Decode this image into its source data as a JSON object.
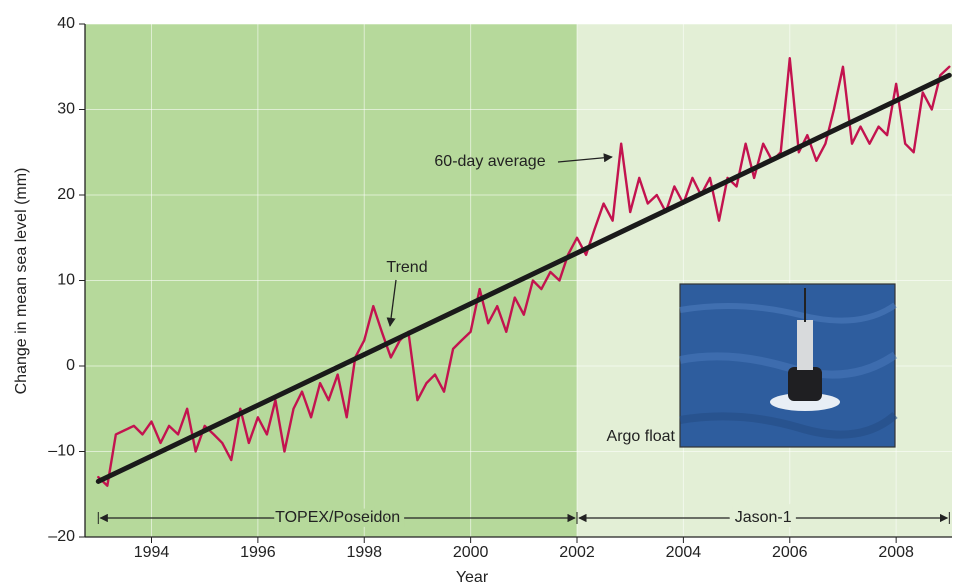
{
  "chart_data": {
    "type": "line",
    "x_label": "Year",
    "y_label": "Change in mean sea level (mm)",
    "xlim": [
      1992.75,
      2009.05
    ],
    "ylim": [
      -20,
      40
    ],
    "xticks": [
      1994,
      1996,
      1998,
      2000,
      2002,
      2004,
      2006,
      2008
    ],
    "yticks": [
      {
        "value": -20,
        "label": "–20"
      },
      {
        "value": -10,
        "label": "–10"
      },
      0,
      10,
      20,
      30,
      40
    ],
    "grid": true,
    "regions": [
      {
        "label": "TOPEX/Poseidon",
        "from": 1993,
        "to": 2002,
        "color": "#b6d99b"
      },
      {
        "label": "Jason-1",
        "from": 2002,
        "to": 2009,
        "color": "#e3efd6"
      }
    ],
    "series": [
      {
        "name": "60-day average",
        "color": "#c3134f",
        "x": [
          1993.0,
          1993.17,
          1993.33,
          1993.5,
          1993.67,
          1993.83,
          1994.0,
          1994.17,
          1994.33,
          1994.5,
          1994.67,
          1994.83,
          1995.0,
          1995.17,
          1995.33,
          1995.5,
          1995.67,
          1995.83,
          1996.0,
          1996.17,
          1996.33,
          1996.5,
          1996.67,
          1996.83,
          1997.0,
          1997.17,
          1997.33,
          1997.5,
          1997.67,
          1997.83,
          1998.0,
          1998.17,
          1998.33,
          1998.5,
          1998.67,
          1998.83,
          1999.0,
          1999.17,
          1999.33,
          1999.5,
          1999.67,
          1999.83,
          2000.0,
          2000.17,
          2000.33,
          2000.5,
          2000.67,
          2000.83,
          2001.0,
          2001.17,
          2001.33,
          2001.5,
          2001.67,
          2001.83,
          2002.0,
          2002.17,
          2002.33,
          2002.5,
          2002.67,
          2002.83,
          2003.0,
          2003.17,
          2003.33,
          2003.5,
          2003.67,
          2003.83,
          2004.0,
          2004.17,
          2004.33,
          2004.5,
          2004.67,
          2004.83,
          2005.0,
          2005.17,
          2005.33,
          2005.5,
          2005.67,
          2005.83,
          2006.0,
          2006.17,
          2006.33,
          2006.5,
          2006.67,
          2006.83,
          2007.0,
          2007.17,
          2007.33,
          2007.5,
          2007.67,
          2007.83,
          2008.0,
          2008.17,
          2008.33,
          2008.5,
          2008.67,
          2008.83,
          2009.0
        ],
        "values": [
          -13,
          -14,
          -8,
          -7.5,
          -7,
          -8,
          -6.5,
          -9,
          -7,
          -8,
          -5,
          -10,
          -7,
          -8,
          -9,
          -11,
          -5,
          -9,
          -6,
          -8,
          -4,
          -10,
          -5,
          -3,
          -6,
          -2,
          -4,
          -1,
          -6,
          1,
          3,
          7,
          4,
          1,
          3,
          4,
          -4,
          -2,
          -1,
          -3,
          2,
          3,
          4,
          9,
          5,
          7,
          4,
          8,
          6,
          10,
          9,
          11,
          10,
          13,
          15,
          13,
          16,
          19,
          17,
          26,
          18,
          22,
          19,
          20,
          18,
          21,
          19,
          22,
          20,
          22,
          17,
          22,
          21,
          26,
          22,
          26,
          24,
          25,
          36,
          25,
          27,
          24,
          26,
          30,
          35,
          26,
          28,
          26,
          28,
          27,
          33,
          26,
          25,
          32,
          30,
          34,
          35
        ]
      },
      {
        "name": "Trend",
        "color": "#1a1a1a",
        "x": [
          1993,
          2009
        ],
        "values": [
          -13.5,
          34
        ]
      }
    ],
    "annotations": [
      "Argo float"
    ]
  }
}
